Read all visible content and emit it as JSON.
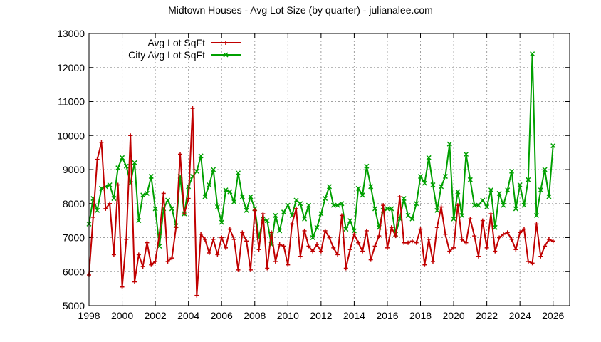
{
  "chart_data": {
    "type": "line",
    "title": "Midtown Houses - Avg Lot Size (by quarter) - julianalee.com",
    "xlabel": "",
    "ylabel": "",
    "xlim": [
      1998,
      2027
    ],
    "ylim": [
      5000,
      13000
    ],
    "x_ticks": [
      1998,
      2000,
      2002,
      2004,
      2006,
      2008,
      2010,
      2012,
      2014,
      2016,
      2018,
      2020,
      2022,
      2024,
      2026
    ],
    "y_ticks": [
      5000,
      6000,
      7000,
      8000,
      9000,
      10000,
      11000,
      12000,
      13000
    ],
    "grid": true,
    "legend_position": "top-left",
    "series": [
      {
        "name": "Avg Lot SqFt",
        "color": "#c00000",
        "marker": "plus",
        "x": [
          1998.0,
          1998.25,
          1998.5,
          1998.75,
          1999.0,
          1999.25,
          1999.5,
          1999.75,
          2000.0,
          2000.25,
          2000.5,
          2000.75,
          2001.0,
          2001.25,
          2001.5,
          2001.75,
          2002.0,
          2002.25,
          2002.5,
          2002.75,
          2003.0,
          2003.25,
          2003.5,
          2003.75,
          2004.0,
          2004.25,
          2004.5,
          2004.75,
          2005.0,
          2005.25,
          2005.5,
          2005.75,
          2006.0,
          2006.25,
          2006.5,
          2006.75,
          2007.0,
          2007.25,
          2007.5,
          2007.75,
          2008.0,
          2008.25,
          2008.5,
          2008.75,
          2009.0,
          2009.25,
          2009.5,
          2009.75,
          2010.0,
          2010.25,
          2010.5,
          2010.75,
          2011.0,
          2011.25,
          2011.5,
          2011.75,
          2012.0,
          2012.25,
          2012.5,
          2012.75,
          2013.0,
          2013.25,
          2013.5,
          2013.75,
          2014.0,
          2014.25,
          2014.5,
          2014.75,
          2015.0,
          2015.25,
          2015.5,
          2015.75,
          2016.0,
          2016.25,
          2016.5,
          2016.75,
          2017.0,
          2017.25,
          2017.5,
          2017.75,
          2018.0,
          2018.25,
          2018.5,
          2018.75,
          2019.0,
          2019.25,
          2019.5,
          2019.75,
          2020.0,
          2020.25,
          2020.5,
          2020.75,
          2021.0,
          2021.25,
          2021.5,
          2021.75,
          2022.0,
          2022.25,
          2022.5,
          2022.75,
          2023.0,
          2023.25,
          2023.5,
          2023.75,
          2024.0,
          2024.25,
          2024.5,
          2024.75,
          2025.0,
          2025.25,
          2025.5,
          2025.75,
          2026.0
        ],
        "y": [
          5900,
          7600,
          9300,
          9800,
          7850,
          8000,
          6500,
          8550,
          5550,
          6950,
          10000,
          5700,
          6500,
          6150,
          6850,
          6200,
          6300,
          7100,
          8300,
          6300,
          6400,
          7300,
          9450,
          7700,
          8150,
          10800,
          5300,
          7100,
          6950,
          6550,
          6950,
          6500,
          7000,
          6700,
          7250,
          6950,
          6050,
          7150,
          6900,
          6050,
          7800,
          6650,
          7700,
          6100,
          7150,
          6300,
          6800,
          6750,
          6200,
          7400,
          7850,
          6450,
          7200,
          6750,
          6600,
          6800,
          6600,
          7200,
          7000,
          6700,
          6500,
          7650,
          6100,
          6650,
          7100,
          6850,
          6600,
          7200,
          6350,
          6750,
          7050,
          7950,
          6700,
          7300,
          7050,
          8200,
          6850,
          6850,
          6900,
          6850,
          7250,
          6200,
          6950,
          6300,
          7300,
          7900,
          7100,
          6600,
          6700,
          7950,
          6950,
          6850,
          7550,
          7050,
          6450,
          7500,
          6700,
          7700,
          6600,
          7000,
          7100,
          7150,
          6950,
          6650,
          7150,
          7250,
          6300,
          6250,
          7400,
          6450,
          6750,
          6950,
          6900
        ]
      },
      {
        "name": "City Avg Lot SqFt",
        "color": "#00a000",
        "marker": "x",
        "x": [
          1998.0,
          1998.25,
          1998.5,
          1998.75,
          1999.0,
          1999.25,
          1999.5,
          1999.75,
          2000.0,
          2000.25,
          2000.5,
          2000.75,
          2001.0,
          2001.25,
          2001.5,
          2001.75,
          2002.0,
          2002.25,
          2002.5,
          2002.75,
          2003.0,
          2003.25,
          2003.5,
          2003.75,
          2004.0,
          2004.25,
          2004.5,
          2004.75,
          2005.0,
          2005.25,
          2005.5,
          2005.75,
          2006.0,
          2006.25,
          2006.5,
          2006.75,
          2007.0,
          2007.25,
          2007.5,
          2007.75,
          2008.0,
          2008.25,
          2008.5,
          2008.75,
          2009.0,
          2009.25,
          2009.5,
          2009.75,
          2010.0,
          2010.25,
          2010.5,
          2010.75,
          2011.0,
          2011.25,
          2011.5,
          2011.75,
          2012.0,
          2012.25,
          2012.5,
          2012.75,
          2013.0,
          2013.25,
          2013.5,
          2013.75,
          2014.0,
          2014.25,
          2014.5,
          2014.75,
          2015.0,
          2015.25,
          2015.5,
          2015.75,
          2016.0,
          2016.25,
          2016.5,
          2016.75,
          2017.0,
          2017.25,
          2017.5,
          2017.75,
          2018.0,
          2018.25,
          2018.5,
          2018.75,
          2019.0,
          2019.25,
          2019.5,
          2019.75,
          2020.0,
          2020.25,
          2020.5,
          2020.75,
          2021.0,
          2021.25,
          2021.5,
          2021.75,
          2022.0,
          2022.25,
          2022.5,
          2022.75,
          2023.0,
          2023.25,
          2023.5,
          2023.75,
          2024.0,
          2024.25,
          2024.5,
          2024.75,
          2025.0,
          2025.25,
          2025.5,
          2025.75,
          2026.0
        ],
        "y": [
          7400,
          8150,
          7800,
          8450,
          8500,
          8550,
          8150,
          9050,
          9350,
          9100,
          8600,
          9200,
          7500,
          8250,
          8300,
          8800,
          7850,
          6750,
          7850,
          8100,
          7850,
          7350,
          8800,
          7700,
          8500,
          8800,
          8950,
          9400,
          8200,
          8550,
          9000,
          7900,
          7450,
          8400,
          8350,
          8050,
          8900,
          8200,
          7800,
          8200,
          7850,
          7000,
          7550,
          7500,
          6800,
          7650,
          7200,
          7750,
          7950,
          7650,
          8100,
          8000,
          7550,
          7950,
          7000,
          7300,
          7700,
          8150,
          8500,
          7950,
          7950,
          8000,
          7250,
          7500,
          7200,
          8450,
          8250,
          9100,
          8500,
          7850,
          7300,
          7800,
          7850,
          7850,
          7100,
          7550,
          8150,
          7650,
          7550,
          8000,
          8800,
          8600,
          9350,
          8550,
          7800,
          8500,
          8800,
          9750,
          7550,
          8350,
          7650,
          9450,
          8700,
          7950,
          7950,
          8100,
          7900,
          8400,
          7300,
          8300,
          7950,
          8400,
          8950,
          7850,
          8550,
          7950,
          8700,
          12400,
          7650,
          8400,
          9000,
          8200,
          9700
        ]
      }
    ]
  }
}
